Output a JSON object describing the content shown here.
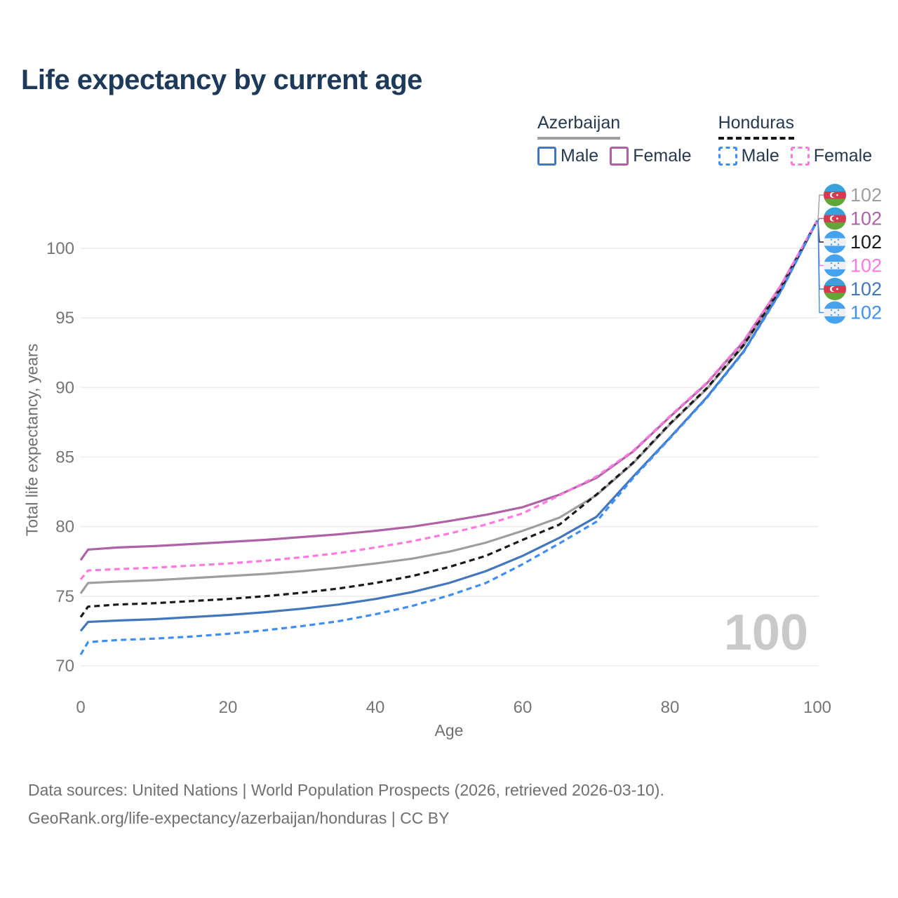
{
  "title": "Life expectancy by current age",
  "legend": {
    "groups": [
      {
        "name": "Azerbaijan",
        "line_style": "solid",
        "underline_color": "#9e9e9e",
        "items": [
          {
            "label": "Male",
            "color": "#4276bd",
            "dash": false
          },
          {
            "label": "Female",
            "color": "#ae62a5",
            "dash": false
          }
        ]
      },
      {
        "name": "Honduras",
        "line_style": "dashed",
        "underline_color": "#161616",
        "items": [
          {
            "label": "Male",
            "color": "#3f8ef3",
            "dash": true
          },
          {
            "label": "Female",
            "color": "#ff79df",
            "dash": true
          }
        ]
      }
    ]
  },
  "chart_data": {
    "type": "line",
    "title": "Life expectancy by current age",
    "xlabel": "Age",
    "ylabel": "Total life expectancy, years",
    "xlim": [
      0,
      100
    ],
    "ylim": [
      70,
      100
    ],
    "xticks": [
      0,
      20,
      40,
      60,
      80,
      100
    ],
    "yticks": [
      70,
      75,
      80,
      85,
      90,
      95,
      100
    ],
    "grid": "horizontal",
    "age_counter": "100",
    "x": [
      0,
      1,
      5,
      10,
      15,
      20,
      25,
      30,
      35,
      40,
      45,
      50,
      55,
      60,
      65,
      70,
      75,
      80,
      85,
      90,
      95,
      100
    ],
    "series": [
      {
        "name": "Azerbaijan Total",
        "country": "Azerbaijan",
        "sex": "Total",
        "color": "#9e9e9e",
        "dash": false,
        "flag": "az",
        "end_label": "102",
        "label_row": 0,
        "values": [
          75.2,
          75.95,
          76.05,
          76.15,
          76.3,
          76.45,
          76.6,
          76.8,
          77.05,
          77.35,
          77.7,
          78.2,
          78.85,
          79.7,
          80.65,
          82.25,
          84.55,
          87.35,
          89.9,
          93.0,
          97.1,
          102
        ]
      },
      {
        "name": "Azerbaijan Female",
        "country": "Azerbaijan",
        "sex": "Female",
        "color": "#ae62a5",
        "dash": false,
        "flag": "az",
        "end_label": "102",
        "label_row": 1,
        "values": [
          77.6,
          78.35,
          78.5,
          78.6,
          78.75,
          78.9,
          79.05,
          79.25,
          79.45,
          79.7,
          80.0,
          80.4,
          80.85,
          81.4,
          82.3,
          83.5,
          85.4,
          87.9,
          90.3,
          93.3,
          97.3,
          102
        ]
      },
      {
        "name": "Honduras Total",
        "country": "Honduras",
        "sex": "Total",
        "color": "#1a1a1a",
        "dash": true,
        "flag": "hn",
        "end_label": "102",
        "label_row": 2,
        "values": [
          73.5,
          74.25,
          74.4,
          74.5,
          74.65,
          74.8,
          75.0,
          75.25,
          75.55,
          75.95,
          76.45,
          77.1,
          77.9,
          79.05,
          80.15,
          82.3,
          84.6,
          87.4,
          89.95,
          93.05,
          97.1,
          102
        ]
      },
      {
        "name": "Honduras Female",
        "country": "Honduras",
        "sex": "Female",
        "color": "#ff79df",
        "dash": true,
        "flag": "hn",
        "end_label": "102",
        "label_row": 3,
        "values": [
          76.2,
          76.85,
          76.95,
          77.05,
          77.2,
          77.35,
          77.55,
          77.8,
          78.1,
          78.5,
          78.95,
          79.5,
          80.15,
          80.95,
          82.25,
          83.6,
          85.45,
          87.95,
          90.35,
          93.35,
          97.3,
          102
        ]
      },
      {
        "name": "Azerbaijan Male",
        "country": "Azerbaijan",
        "sex": "Male",
        "color": "#4276bd",
        "dash": false,
        "flag": "az",
        "end_label": "102",
        "label_row": 4,
        "values": [
          72.5,
          73.15,
          73.25,
          73.35,
          73.5,
          73.65,
          73.85,
          74.1,
          74.4,
          74.8,
          75.3,
          75.95,
          76.8,
          77.9,
          79.2,
          80.7,
          83.6,
          86.4,
          89.3,
          92.6,
          96.9,
          102
        ]
      },
      {
        "name": "Honduras Male",
        "country": "Honduras",
        "sex": "Male",
        "color": "#3f8ef3",
        "dash": true,
        "flag": "hn",
        "end_label": "102",
        "label_row": 5,
        "values": [
          70.8,
          71.7,
          71.85,
          71.95,
          72.1,
          72.3,
          72.55,
          72.85,
          73.2,
          73.7,
          74.3,
          75.05,
          75.95,
          77.3,
          78.8,
          80.35,
          83.5,
          86.35,
          89.25,
          92.55,
          96.85,
          102
        ]
      }
    ]
  },
  "flag_colors": {
    "az": {
      "top": "#38a1dc",
      "mid": "#d73a4e",
      "bottom": "#63a538",
      "crescent": "#ffffff"
    },
    "hn": {
      "band": "#45a2ef",
      "mid": "#edf1f4",
      "star": "#45a2ef"
    }
  },
  "watermark_age": "100",
  "source_line1": "Data sources: United Nations | World Population Prospects (2026, retrieved 2026-03-10).",
  "source_line2": "GeoRank.org/life-expectancy/azerbaijan/honduras | CC BY"
}
